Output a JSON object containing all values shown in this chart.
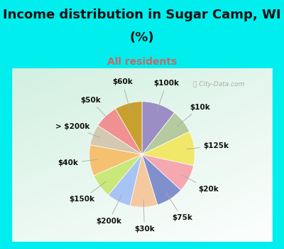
{
  "title_line1": "Income distribution in Sugar Camp, WI",
  "title_line2": "(%)",
  "subtitle": "All residents",
  "bg_cyan": "#00eeee",
  "bg_chart_color": "#d8f0e8",
  "title_fontsize": 13,
  "subtitle_fontsize": 10,
  "labels": [
    "$100k",
    "$10k",
    "$125k",
    "$20k",
    "$75k",
    "$30k",
    "$200k",
    "$150k",
    "$40k",
    "> $200k",
    "$50k",
    "$60k"
  ],
  "values": [
    10,
    7,
    10,
    8,
    8,
    8,
    7,
    7,
    9,
    6,
    7,
    8
  ],
  "colors": [
    "#9b8ec4",
    "#b5ca9f",
    "#f0e868",
    "#f4a8b0",
    "#8090cc",
    "#f5c9a0",
    "#a8c4f5",
    "#c8e87a",
    "#f5c070",
    "#d4c8b0",
    "#f09090",
    "#c8a030"
  ],
  "startangle": 90,
  "label_fontsize": 7.5,
  "label_distance": 1.42,
  "watermark": "City-Data.com"
}
